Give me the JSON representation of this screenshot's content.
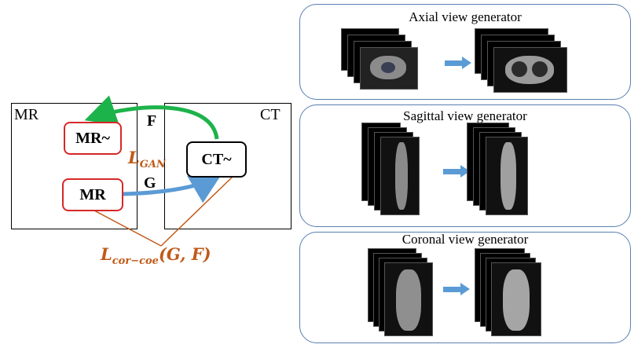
{
  "left": {
    "mr_domain_label": "MR",
    "ct_domain_label": "CT",
    "nodes": {
      "mr_tilde": "MR~",
      "mr": "MR",
      "ct_tilde": "CT~"
    },
    "f_label": "F",
    "g_label": "G",
    "loss_gan": {
      "main": "L",
      "sub": "GAN"
    },
    "loss_cor": {
      "main": "L",
      "sub": "cor−coe",
      "args": "(G, F)"
    }
  },
  "right": {
    "panels": [
      {
        "title": "Axial view generator"
      },
      {
        "title": "Sagittal view generator"
      },
      {
        "title": "Coronal view generator"
      }
    ]
  },
  "colors": {
    "arrow_f": "#1db34b",
    "arrow_g": "#5b9bd5",
    "node_border_red": "#d62828",
    "loss": "#c05a18",
    "panel_border": "#5a7fb0"
  }
}
